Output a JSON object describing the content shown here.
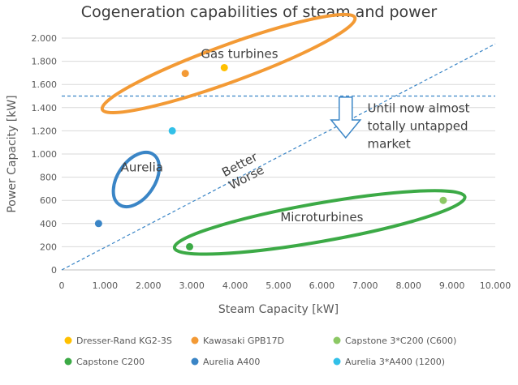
{
  "chart_data": {
    "type": "scatter",
    "title": "Cogeneration capabilities of steam and power",
    "xlabel": "Steam Capacity [kW]",
    "ylabel": "Power Capacity [kW]",
    "xlim": [
      0,
      10000
    ],
    "ylim": [
      0,
      2000
    ],
    "x_ticks": [
      0,
      1000,
      2000,
      3000,
      4000,
      5000,
      6000,
      7000,
      8000,
      9000,
      10000
    ],
    "y_ticks": [
      0,
      200,
      400,
      600,
      800,
      1000,
      1200,
      1400,
      1600,
      1800,
      2000
    ],
    "x_tick_labels": [
      "0",
      "1.000",
      "2.000",
      "3.000",
      "4.000",
      "5.000",
      "6.000",
      "7.000",
      "8.000",
      "9.000",
      "10.000"
    ],
    "y_tick_labels": [
      "0",
      "200",
      "400",
      "600",
      "800",
      "1.000",
      "1.200",
      "1.400",
      "1.600",
      "1.800",
      "2.000"
    ],
    "grid": "horizontal",
    "legend_position": "bottom",
    "series": [
      {
        "name": "Dresser-Rand KG2-3S",
        "color": "#FFC000",
        "points": [
          [
            3750,
            1745
          ]
        ]
      },
      {
        "name": "Kawasaki GPB17D",
        "color": "#F39A35",
        "points": [
          [
            2850,
            1695
          ]
        ]
      },
      {
        "name": "Capstone 3*C200 (C600)",
        "color": "#8CC864",
        "points": [
          [
            8800,
            600
          ]
        ]
      },
      {
        "name": "Capstone C200",
        "color": "#3CAA46",
        "points": [
          [
            2950,
            200
          ]
        ]
      },
      {
        "name": "Aurelia A400",
        "color": "#3A85C6",
        "points": [
          [
            850,
            400
          ]
        ]
      },
      {
        "name": "Aurelia 3*A400 (1200)",
        "color": "#32C0E8",
        "points": [
          [
            2550,
            1200
          ]
        ]
      }
    ],
    "regions": [
      {
        "label": "Gas turbines",
        "color": "#F39A35",
        "label_at": [
          4100,
          1830
        ],
        "cx": 3850,
        "cy": 1780,
        "rx": 3100,
        "ry": 160,
        "angle": -20
      },
      {
        "label": "Aurelia",
        "color": "#3A85C6",
        "label_at": [
          1850,
          850
        ],
        "cx": 1720,
        "cy": 780,
        "rx": 700,
        "ry": 160,
        "angle": -56
      },
      {
        "label": "Microturbines",
        "color": "#3CAA46",
        "label_at": [
          6000,
          420
        ],
        "cx": 5950,
        "cy": 410,
        "rx": 3400,
        "ry": 165,
        "angle": -10
      }
    ],
    "threshold_line": {
      "y": 1500,
      "color": "#3A85C6"
    },
    "diagonal_line": {
      "from": [
        0,
        0
      ],
      "to": [
        10000,
        1950
      ],
      "color": "#3A85C6"
    },
    "diagonal_labels": {
      "above": "Better",
      "below": "Worse",
      "at": [
        4200,
        840
      ]
    },
    "arrow": {
      "x": 6550,
      "y_top": 1490,
      "y_bottom": 1140,
      "color": "#3A85C6"
    },
    "note": {
      "lines": [
        "Until now almost",
        "totally untapped",
        "market"
      ],
      "at": [
        7050,
        1360
      ]
    }
  }
}
